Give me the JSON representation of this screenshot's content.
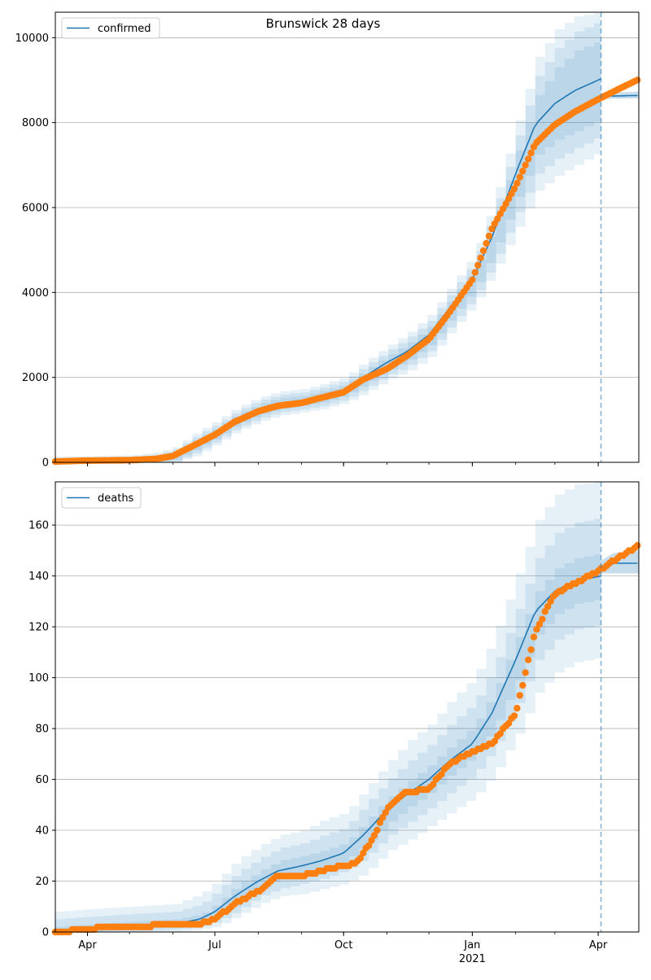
{
  "figure": {
    "title": "Brunswick 28 days"
  },
  "chart_data": [
    {
      "type": "line",
      "legend": [
        "confirmed"
      ],
      "legend_position": "top-left",
      "grid": "horizontal",
      "xlim": [
        "2020-03-09",
        "2021-04-30"
      ],
      "ylim": [
        0,
        10600
      ],
      "yticks": [
        0,
        2000,
        4000,
        6000,
        8000,
        10000
      ],
      "xticks": [
        {
          "date": "2020-04-01",
          "label": "Apr",
          "sub": ""
        },
        {
          "date": "2020-07-01",
          "label": "Jul",
          "sub": ""
        },
        {
          "date": "2020-10-01",
          "label": "Oct",
          "sub": ""
        },
        {
          "date": "2021-01-01",
          "label": "Jan",
          "sub": "2021"
        },
        {
          "date": "2021-04-01",
          "label": "Apr",
          "sub": ""
        }
      ],
      "forecast_start": "2021-04-03",
      "model": {
        "x": [
          "2020-03-09",
          "2020-04-01",
          "2020-05-01",
          "2020-05-20",
          "2020-06-01",
          "2020-06-15",
          "2020-07-01",
          "2020-07-15",
          "2020-08-01",
          "2020-08-15",
          "2020-09-01",
          "2020-09-15",
          "2020-10-01",
          "2020-10-15",
          "2020-11-01",
          "2020-11-15",
          "2020-12-01",
          "2020-12-15",
          "2021-01-01",
          "2021-01-15",
          "2021-02-01",
          "2021-02-15",
          "2021-03-01",
          "2021-03-15",
          "2021-04-03"
        ],
        "y": [
          20,
          30,
          50,
          80,
          150,
          400,
          700,
          1000,
          1250,
          1380,
          1450,
          1550,
          1700,
          2000,
          2350,
          2600,
          3000,
          3600,
          4300,
          5300,
          6800,
          7950,
          8450,
          8750,
          9030
        ],
        "bands": [
          {
            "lower": [
              0,
              0,
              0,
              10,
              60,
              280,
              580,
              880,
              1120,
              1250,
              1330,
              1420,
              1570,
              1840,
              2170,
              2400,
              2780,
              3380,
              4060,
              4950,
              6250,
              7250,
              7600,
              7800,
              8100
            ],
            "upper": [
              60,
              70,
              90,
              150,
              250,
              520,
              820,
              1120,
              1380,
              1510,
              1570,
              1680,
              1830,
              2160,
              2530,
              2800,
              3220,
              3820,
              4540,
              5650,
              7350,
              8650,
              9300,
              9700,
              9960
            ]
          },
          {
            "lower": [
              0,
              0,
              0,
              0,
              20,
              210,
              500,
              800,
              1040,
              1170,
              1250,
              1330,
              1480,
              1730,
              2060,
              2270,
              2640,
              3220,
              3880,
              4700,
              5900,
              6800,
              7150,
              7400,
              7700
            ],
            "upper": [
              100,
              110,
              130,
              190,
              300,
              600,
              900,
              1200,
              1460,
              1590,
              1650,
              1770,
              1920,
              2270,
              2640,
              2930,
              3360,
              3980,
              4720,
              5900,
              7700,
              9100,
              9750,
              10150,
              10400
            ]
          },
          {
            "lower": [
              0,
              0,
              0,
              0,
              0,
              140,
              430,
              730,
              960,
              1100,
              1180,
              1260,
              1400,
              1630,
              1950,
              2150,
              2500,
              3080,
              3720,
              4500,
              5550,
              6400,
              6750,
              7000,
              7350
            ],
            "upper": [
              140,
              150,
              170,
              240,
              360,
              680,
              980,
              1280,
              1540,
              1670,
              1730,
              1850,
              2010,
              2380,
              2750,
              3050,
              3500,
              4130,
              4900,
              6150,
              8050,
              9550,
              10200,
              10500,
              10600
            ]
          }
        ]
      },
      "forecast_line": {
        "x": [
          "2021-04-03",
          "2021-04-30"
        ],
        "y": [
          8620,
          8640
        ],
        "lower": [
          8560,
          8570
        ],
        "upper": [
          8700,
          8730
        ]
      },
      "observed": {
        "x": [
          "2020-03-09",
          "2020-04-01",
          "2020-05-01",
          "2020-05-20",
          "2020-06-01",
          "2020-06-15",
          "2020-07-01",
          "2020-07-15",
          "2020-08-01",
          "2020-08-15",
          "2020-09-01",
          "2020-09-15",
          "2020-10-01",
          "2020-10-15",
          "2020-11-01",
          "2020-11-15",
          "2020-12-01",
          "2020-12-15",
          "2021-01-01",
          "2021-01-15",
          "2021-02-01",
          "2021-02-15",
          "2021-03-01",
          "2021-03-15",
          "2021-04-01",
          "2021-04-15",
          "2021-04-30"
        ],
        "y": [
          20,
          40,
          50,
          80,
          150,
          380,
          650,
          950,
          1200,
          1330,
          1400,
          1520,
          1650,
          1950,
          2200,
          2500,
          2900,
          3500,
          4300,
          5500,
          6500,
          7500,
          7950,
          8250,
          8550,
          8780,
          9020
        ]
      }
    },
    {
      "type": "line",
      "legend": [
        "deaths"
      ],
      "legend_position": "top-left",
      "grid": "horizontal",
      "xlim": [
        "2020-03-09",
        "2021-04-30"
      ],
      "ylim": [
        0,
        177
      ],
      "yticks": [
        0,
        20,
        40,
        60,
        80,
        100,
        120,
        140,
        160
      ],
      "xticks": [
        {
          "date": "2020-04-01",
          "label": "Apr",
          "sub": ""
        },
        {
          "date": "2020-07-01",
          "label": "Jul",
          "sub": ""
        },
        {
          "date": "2020-10-01",
          "label": "Oct",
          "sub": ""
        },
        {
          "date": "2021-01-01",
          "label": "Jan",
          "sub": "2021"
        },
        {
          "date": "2021-04-01",
          "label": "Apr",
          "sub": ""
        }
      ],
      "forecast_start": "2021-04-03",
      "model": {
        "x": [
          "2020-03-09",
          "2020-04-01",
          "2020-05-01",
          "2020-06-01",
          "2020-06-20",
          "2020-07-01",
          "2020-07-15",
          "2020-08-01",
          "2020-08-15",
          "2020-09-01",
          "2020-09-15",
          "2020-10-01",
          "2020-10-15",
          "2020-11-01",
          "2020-11-15",
          "2020-12-01",
          "2020-12-15",
          "2021-01-01",
          "2021-01-15",
          "2021-02-01",
          "2021-02-15",
          "2021-03-01",
          "2021-03-15",
          "2021-04-03"
        ],
        "y": [
          0,
          1,
          2,
          3,
          5,
          8,
          14,
          20,
          24,
          26,
          28,
          31,
          38,
          48,
          54,
          60,
          67,
          74,
          86,
          107,
          126,
          134,
          138,
          140
        ],
        "bands": [
          {
            "lower": [
              0,
              0,
              1,
              2,
              4,
              6,
              11,
              17,
              21,
              23,
              25,
              28,
              34,
              43,
              49,
              55,
              62,
              69,
              80,
              99,
              117,
              125,
              129,
              131
            ],
            "upper": [
              2,
              3,
              4,
              5,
              7,
              11,
              18,
              24,
              28,
              30,
              32,
              35,
              43,
              53,
              59,
              66,
              73,
              81,
              94,
              116,
              134,
              143,
              147,
              149
            ]
          },
          {
            "lower": [
              0,
              0,
              0,
              1,
              2,
              4,
              8,
              14,
              17,
              19,
              21,
              24,
              29,
              38,
              43,
              49,
              55,
              62,
              72,
              90,
              107,
              115,
              119,
              121
            ],
            "upper": [
              5,
              6,
              7,
              8,
              11,
              16,
              23,
              29,
              33,
              35,
              38,
              41,
              50,
              60,
              67,
              74,
              82,
              90,
              104,
              127,
              147,
              157,
              161,
              163
            ]
          },
          {
            "lower": [
              0,
              0,
              0,
              0,
              1,
              2,
              6,
              11,
              14,
              15,
              17,
              19,
              23,
              32,
              36,
              42,
              47,
              53,
              62,
              78,
              94,
              102,
              106,
              108
            ],
            "upper": [
              8,
              9,
              10,
              11,
              15,
              20,
              28,
              34,
              38,
              40,
              44,
              47,
              56,
              67,
              75,
              82,
              91,
              100,
              116,
              141,
              162,
              172,
              176,
              177
            ]
          }
        ]
      },
      "forecast_line": {
        "x": [
          "2021-04-03",
          "2021-04-12",
          "2021-04-30"
        ],
        "y": [
          143,
          145,
          145
        ],
        "lower": [
          141,
          141,
          141
        ],
        "upper": [
          146,
          149,
          150
        ]
      },
      "observed": {
        "x": [
          "2020-03-09",
          "2020-04-01",
          "2020-04-15",
          "2020-05-01",
          "2020-06-01",
          "2020-06-20",
          "2020-07-01",
          "2020-07-15",
          "2020-08-01",
          "2020-08-15",
          "2020-09-01",
          "2020-09-15",
          "2020-10-01",
          "2020-10-10",
          "2020-10-20",
          "2020-11-01",
          "2020-11-15",
          "2020-12-01",
          "2020-12-15",
          "2021-01-01",
          "2021-01-15",
          "2021-02-01",
          "2021-02-15",
          "2021-03-01",
          "2021-03-15",
          "2021-04-01",
          "2021-04-15",
          "2021-04-30"
        ],
        "y": [
          0,
          1,
          2,
          2,
          3,
          3,
          5,
          11,
          16,
          22,
          22,
          24,
          26,
          27,
          35,
          48,
          55,
          56,
          66,
          71,
          74,
          86,
          118,
          133,
          137,
          142,
          147,
          152
        ]
      }
    }
  ]
}
